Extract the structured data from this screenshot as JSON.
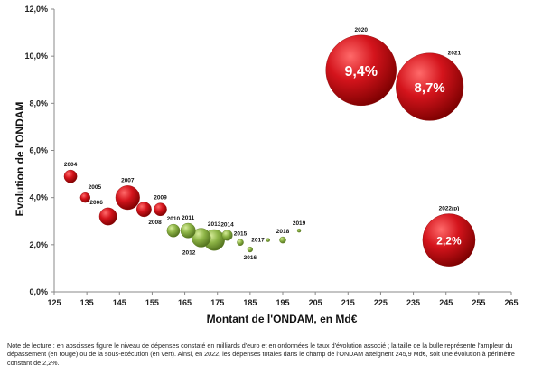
{
  "chart_data": {
    "type": "bubble",
    "xlabel": "Montant de l'ONDAM, en Md€",
    "ylabel": "Evolution de l'ONDAM",
    "xlim": [
      125,
      265
    ],
    "ylim": [
      0,
      12
    ],
    "xticks": [
      125,
      135,
      145,
      155,
      165,
      175,
      185,
      195,
      205,
      215,
      225,
      235,
      245,
      255,
      265
    ],
    "yticks": [
      0,
      2,
      4,
      6,
      8,
      10,
      12
    ],
    "ytick_labels": [
      "0,0%",
      "2,0%",
      "4,0%",
      "6,0%",
      "8,0%",
      "10,0%",
      "12,0%"
    ],
    "grid": false,
    "colors": {
      "over": "#c8141b",
      "under": "#7fa43a"
    },
    "points": [
      {
        "label": "2004",
        "x": 130,
        "y": 4.9,
        "size": 0.6,
        "kind": "over"
      },
      {
        "label": "2005",
        "x": 134.5,
        "y": 4.0,
        "size": 0.35,
        "kind": "over"
      },
      {
        "label": "2006",
        "x": 141.5,
        "y": 3.2,
        "size": 1.1,
        "kind": "over"
      },
      {
        "label": "2007",
        "x": 147.5,
        "y": 4.0,
        "size": 2.1,
        "kind": "over"
      },
      {
        "label": "2008",
        "x": 152.5,
        "y": 3.5,
        "size": 0.8,
        "kind": "over"
      },
      {
        "label": "2009",
        "x": 157.5,
        "y": 3.5,
        "size": 0.6,
        "kind": "over"
      },
      {
        "label": "2010",
        "x": 161.5,
        "y": 2.6,
        "size": 0.6,
        "kind": "under"
      },
      {
        "label": "2011",
        "x": 166,
        "y": 2.6,
        "size": 0.8,
        "kind": "under"
      },
      {
        "label": "2012",
        "x": 170,
        "y": 2.3,
        "size": 1.3,
        "kind": "under"
      },
      {
        "label": "2013",
        "x": 174,
        "y": 2.2,
        "size": 1.6,
        "kind": "under"
      },
      {
        "label": "2014",
        "x": 178,
        "y": 2.4,
        "size": 0.4,
        "kind": "under"
      },
      {
        "label": "2015",
        "x": 182,
        "y": 2.1,
        "size": 0.15,
        "kind": "under"
      },
      {
        "label": "2016",
        "x": 185,
        "y": 1.8,
        "size": 0.1,
        "kind": "under"
      },
      {
        "label": "2017",
        "x": 190.5,
        "y": 2.2,
        "size": 0.04,
        "kind": "under"
      },
      {
        "label": "2018",
        "x": 195,
        "y": 2.2,
        "size": 0.15,
        "kind": "under"
      },
      {
        "label": "2019",
        "x": 200,
        "y": 2.6,
        "size": 0.04,
        "kind": "under"
      },
      {
        "label": "2020",
        "x": 219,
        "y": 9.4,
        "size": 18.0,
        "kind": "over",
        "value_label": "9,4%"
      },
      {
        "label": "2021",
        "x": 240,
        "y": 8.7,
        "size": 16.5,
        "kind": "over",
        "value_label": "8,7%"
      },
      {
        "label": "2022(p)",
        "x": 245.9,
        "y": 2.2,
        "size": 10.0,
        "kind": "over",
        "value_label": "2,2%"
      }
    ]
  },
  "note": "Note de lecture : en abscisses figure le niveau de dépenses constaté en milliards d'euro et en ordonnées le taux d'évolution associé ; la taille de la bulle représente l'ampleur du dépassement (en rouge) ou de la sous-exécution (en vert). Ainsi, en 2022, les dépenses totales dans le champ de l'ONDAM atteignent 245,9 Md€, soit une évolution à périmètre constant de 2,2%."
}
